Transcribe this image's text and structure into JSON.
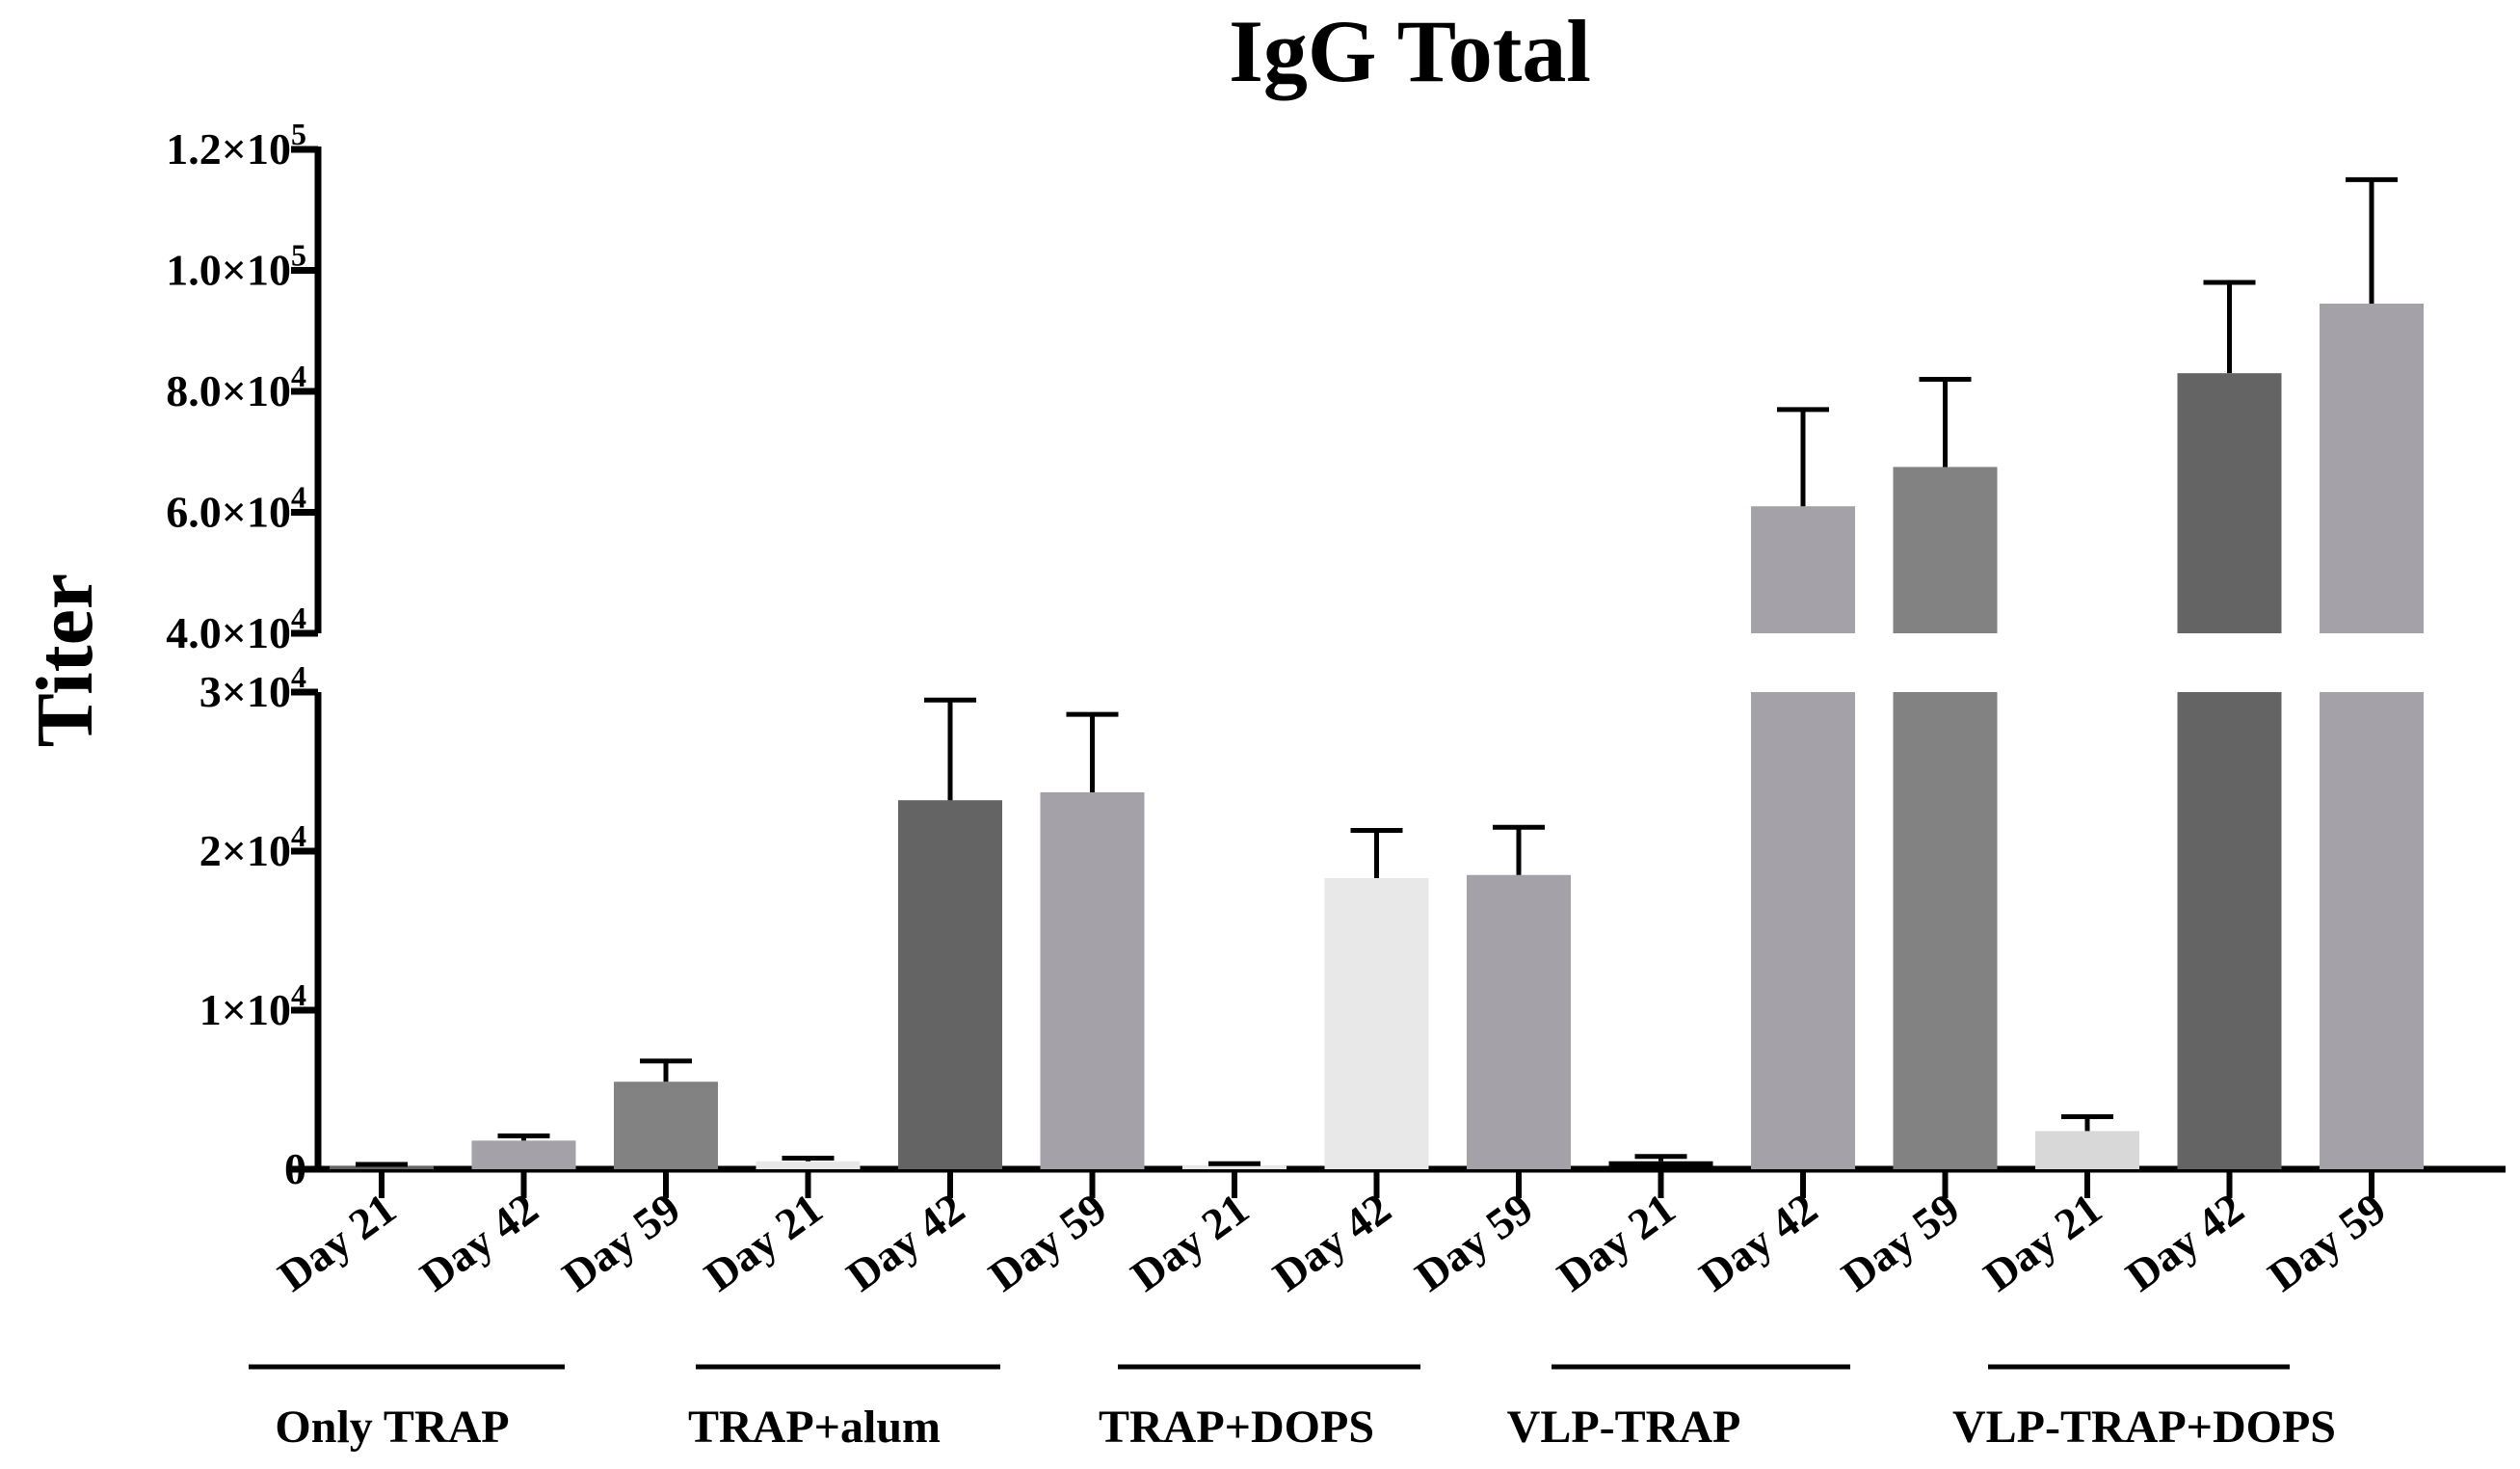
{
  "chart_data": {
    "type": "bar",
    "title": "IgG Total",
    "xlabel": "",
    "ylabel": "Titer",
    "axis_break": {
      "lower_range": [
        0,
        30000
      ],
      "upper_range": [
        40000,
        120000
      ]
    },
    "lower_ticks": [
      {
        "value": 0,
        "mant": "0",
        "exp": ""
      },
      {
        "value": 10000,
        "mant": "1×10",
        "exp": "4"
      },
      {
        "value": 20000,
        "mant": "2×10",
        "exp": "4"
      },
      {
        "value": 30000,
        "mant": "3×10",
        "exp": "4"
      }
    ],
    "upper_ticks": [
      {
        "value": 40000,
        "mant": "4.0×10",
        "exp": "4"
      },
      {
        "value": 60000,
        "mant": "6.0×10",
        "exp": "4"
      },
      {
        "value": 80000,
        "mant": "8.0×10",
        "exp": "4"
      },
      {
        "value": 100000,
        "mant": "1.0×10",
        "exp": "5"
      },
      {
        "value": 120000,
        "mant": "1.2×10",
        "exp": "5"
      }
    ],
    "categories": [
      "Day 21",
      "Day 42",
      "Day 59",
      "Day 21",
      "Day 42",
      "Day 59",
      "Day 21",
      "Day 42",
      "Day 59",
      "Day 21",
      "Day 42",
      "Day 59",
      "Day 21",
      "Day 42",
      "Day 59"
    ],
    "groups": [
      "Only TRAP",
      "TRAP+alum",
      "TRAP+DOPS",
      "VLP-TRAP",
      "VLP-TRAP+DOPS"
    ],
    "values": [
      200,
      1800,
      5500,
      500,
      23200,
      23700,
      250,
      18300,
      18500,
      500,
      61000,
      67500,
      2400,
      83000,
      94500
    ],
    "errors": [
      100,
      300,
      1300,
      200,
      6300,
      4900,
      100,
      3000,
      3000,
      300,
      16000,
      14500,
      900,
      15000,
      20500
    ],
    "colors": [
      "#646464",
      "#a4a2a8",
      "#828282",
      "#e8e8e8",
      "#646464",
      "#a4a2a8",
      "#e8e8e8",
      "#e8e8e8",
      "#a4a2a8",
      "#000000",
      "#a4a2a8",
      "#828282",
      "#d8d8d8",
      "#646464",
      "#a4a2a8"
    ]
  }
}
